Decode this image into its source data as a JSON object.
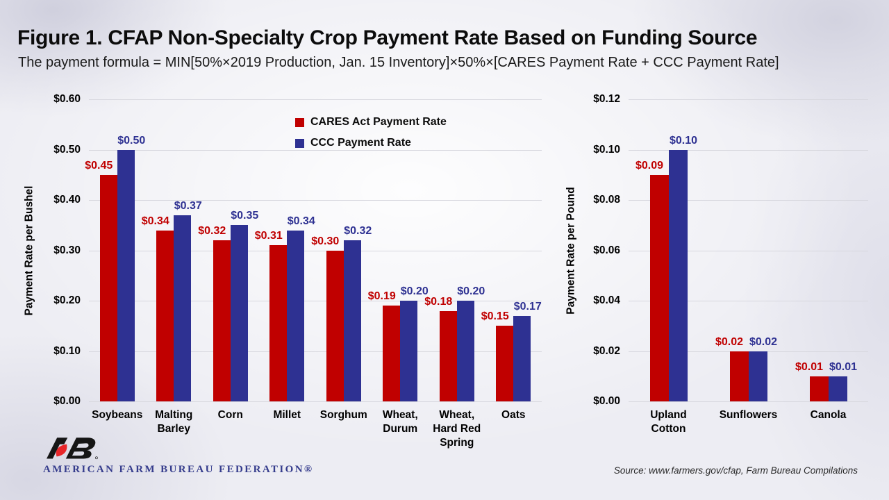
{
  "slide": {
    "title": "Figure 1. CFAP Non-Specialty Crop Payment Rate Based on Funding Source",
    "subtitle": "The payment formula = MIN[50%×2019 Production, Jan. 15 Inventory]×50%×[CARES Payment Rate + CCC Payment Rate]"
  },
  "legend": {
    "items": [
      {
        "label": "CARES Act Payment Rate",
        "color": "#C00000"
      },
      {
        "label": "CCC Payment Rate",
        "color": "#2E3192"
      }
    ]
  },
  "chart_data": [
    {
      "type": "bar",
      "title": "",
      "ylabel": "Payment Rate per Bushel",
      "xlabel": "",
      "categories": [
        "Soybeans",
        "Malting\nBarley",
        "Corn",
        "Millet",
        "Sorghum",
        "Wheat,\nDurum",
        "Wheat,\nHard Red\nSpring",
        "Oats"
      ],
      "series": [
        {
          "name": "CARES Act Payment Rate",
          "color": "#C00000",
          "values": [
            0.45,
            0.34,
            0.32,
            0.31,
            0.3,
            0.19,
            0.18,
            0.15
          ]
        },
        {
          "name": "CCC Payment Rate",
          "color": "#2E3192",
          "values": [
            0.5,
            0.37,
            0.35,
            0.34,
            0.32,
            0.2,
            0.2,
            0.17
          ]
        }
      ],
      "ylim": [
        0,
        0.6
      ],
      "ytick_step": 0.1,
      "tick_prefix": "$",
      "grid": true,
      "legend_position": "top-center-inside"
    },
    {
      "type": "bar",
      "title": "",
      "ylabel": "Payment Rate per Pound",
      "xlabel": "",
      "categories": [
        "Upland\nCotton",
        "Sunflowers",
        "Canola"
      ],
      "series": [
        {
          "name": "CARES Act Payment Rate",
          "color": "#C00000",
          "values": [
            0.09,
            0.02,
            0.01
          ]
        },
        {
          "name": "CCC Payment Rate",
          "color": "#2E3192",
          "values": [
            0.1,
            0.02,
            0.01
          ]
        }
      ],
      "ylim": [
        0,
        0.12
      ],
      "ytick_step": 0.02,
      "tick_prefix": "$",
      "grid": true,
      "legend_position": "none"
    }
  ],
  "footer": {
    "logo": "afbf-fb-logo",
    "wordmark": "AMERICAN FARM BUREAU FEDERATION®",
    "source": "Source: www.farmers.gov/cfap, Farm Bureau Compilations"
  },
  "colors": {
    "cares_red": "#C00000",
    "ccc_blue": "#2E3192",
    "gridline": "#D7D7DE",
    "wordmark_navy": "#353C8C"
  }
}
